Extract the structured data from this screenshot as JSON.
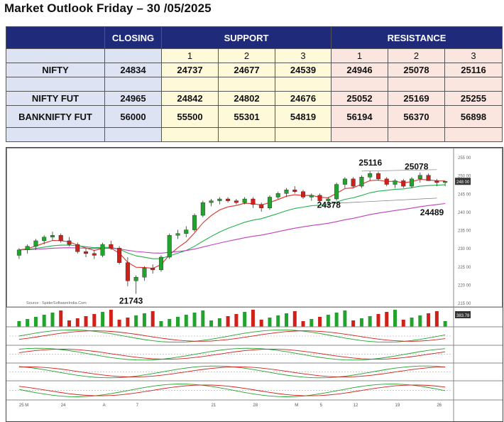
{
  "header": {
    "title": "Market Outlook Friday – 30 /05/2025"
  },
  "table": {
    "col_closing": "CLOSING",
    "col_support": "SUPPORT",
    "col_resistance": "RESISTANCE",
    "sub": [
      "1",
      "2",
      "3",
      "1",
      "2",
      "3"
    ],
    "rows": [
      {
        "name": "NIFTY",
        "closing": "24834",
        "support": [
          "24737",
          "24677",
          "24539"
        ],
        "resistance": [
          "24946",
          "25078",
          "25116"
        ]
      },
      {
        "name": "NIFTY FUT",
        "closing": "24965",
        "support": [
          "24842",
          "24802",
          "24676"
        ],
        "resistance": [
          "25052",
          "25169",
          "25255"
        ]
      },
      {
        "name": "BANKNIFTY FUT",
        "closing": "56000",
        "support": [
          "55500",
          "55301",
          "54819"
        ],
        "resistance": [
          "56194",
          "56370",
          "56898"
        ]
      }
    ]
  },
  "chart_data": {
    "type": "candlestick",
    "annotations": [
      "25116",
      "25078",
      "24378",
      "24489",
      "21743"
    ],
    "source_text": "Source : SpiderSoftwareIndia.Com",
    "ylabels": [
      "255 00",
      "250 00",
      "245 00",
      "240 00",
      "235 00",
      "230 00",
      "225 00",
      "220 00",
      "215 00"
    ],
    "xlabels": [
      "25 M",
      "24",
      "A",
      "7",
      "21",
      "28",
      "M",
      "5",
      "12",
      "19",
      "26"
    ],
    "last_price_label": "248 00",
    "volume_label": "383.78",
    "candles": [
      [
        22800,
        23000,
        22700,
        22950
      ],
      [
        22950,
        23100,
        22850,
        23050
      ],
      [
        23050,
        23250,
        22950,
        23200
      ],
      [
        23200,
        23350,
        23100,
        23300
      ],
      [
        23300,
        23450,
        23200,
        23350
      ],
      [
        23350,
        23400,
        23150,
        23200
      ],
      [
        23200,
        23300,
        23050,
        23100
      ],
      [
        23100,
        23150,
        22850,
        22900
      ],
      [
        22900,
        23000,
        22750,
        22850
      ],
      [
        22850,
        22950,
        22700,
        22800
      ],
      [
        22800,
        23150,
        22750,
        23100
      ],
      [
        23100,
        23200,
        22950,
        23000
      ],
      [
        23000,
        23050,
        22550,
        22600
      ],
      [
        22600,
        22750,
        21950,
        22100
      ],
      [
        22100,
        22250,
        21743,
        22200
      ],
      [
        22200,
        22500,
        22100,
        22450
      ],
      [
        22450,
        22550,
        22300,
        22400
      ],
      [
        22400,
        22800,
        22350,
        22750
      ],
      [
        22750,
        23400,
        22700,
        23350
      ],
      [
        23350,
        23500,
        23250,
        23400
      ],
      [
        23400,
        23600,
        23300,
        23500
      ],
      [
        23500,
        23950,
        23450,
        23900
      ],
      [
        23900,
        24300,
        23850,
        24250
      ],
      [
        24250,
        24350,
        24150,
        24300
      ],
      [
        24300,
        24400,
        24200,
        24350
      ],
      [
        24350,
        24400,
        24250,
        24300
      ],
      [
        24300,
        24350,
        24200,
        24250
      ],
      [
        24250,
        24400,
        24200,
        24350
      ],
      [
        24350,
        24400,
        24100,
        24200
      ],
      [
        24200,
        24250,
        24000,
        24100
      ],
      [
        24100,
        24450,
        24050,
        24400
      ],
      [
        24400,
        24550,
        24350,
        24500
      ],
      [
        24500,
        24650,
        24400,
        24600
      ],
      [
        24600,
        24700,
        24500,
        24550
      ],
      [
        24550,
        24600,
        24350,
        24400
      ],
      [
        24400,
        24500,
        24300,
        24450
      ],
      [
        24450,
        24500,
        24250,
        24300
      ],
      [
        24300,
        24400,
        24150,
        24350
      ],
      [
        24350,
        24800,
        24300,
        24750
      ],
      [
        24750,
        24950,
        24650,
        24900
      ],
      [
        24900,
        24950,
        24650,
        24700
      ],
      [
        24700,
        25000,
        24650,
        24950
      ],
      [
        24950,
        25116,
        24850,
        25050
      ],
      [
        25050,
        25100,
        24850,
        24900
      ],
      [
        24900,
        24950,
        24700,
        24750
      ],
      [
        24750,
        24900,
        24650,
        24850
      ],
      [
        24850,
        24900,
        24650,
        24700
      ],
      [
        24700,
        24950,
        24650,
        24900
      ],
      [
        24900,
        25078,
        24800,
        25000
      ],
      [
        25000,
        25050,
        24850,
        24850
      ],
      [
        24850,
        24900,
        24700,
        24800
      ],
      [
        24800,
        24850,
        24700,
        24834
      ]
    ],
    "series": [
      {
        "name": "EMA short",
        "color": "#e0302a"
      },
      {
        "name": "EMA medium",
        "color": "#22b14c"
      },
      {
        "name": "EMA long",
        "color": "#c040c0"
      }
    ],
    "ylim": [
      21500,
      25600
    ]
  }
}
